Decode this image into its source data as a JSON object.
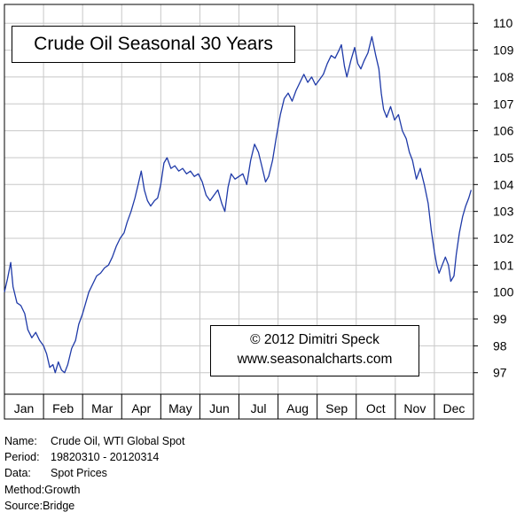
{
  "chart_data": {
    "type": "line",
    "title": "Crude Oil Seasonal 30 Years",
    "credit": [
      "© 2012  Dimitri Speck",
      "www.seasonalcharts.com"
    ],
    "x_ticks": [
      "Jan",
      "Feb",
      "Mar",
      "Apr",
      "May",
      "Jun",
      "Jul",
      "Aug",
      "Sep",
      "Oct",
      "Nov",
      "Dec"
    ],
    "y_ticks": [
      97,
      98,
      99,
      100,
      101,
      102,
      103,
      104,
      105,
      106,
      107,
      108,
      109,
      110
    ],
    "ylim": [
      96.2,
      110.7
    ],
    "xlim": [
      0,
      12
    ],
    "grid": true,
    "y_axis_side": "right",
    "line_color": "#1f3aa8",
    "series": [
      {
        "points": [
          [
            0.0,
            100.0
          ],
          [
            0.08,
            100.5
          ],
          [
            0.16,
            101.1
          ],
          [
            0.22,
            100.2
          ],
          [
            0.32,
            99.6
          ],
          [
            0.42,
            99.5
          ],
          [
            0.52,
            99.2
          ],
          [
            0.6,
            98.6
          ],
          [
            0.7,
            98.3
          ],
          [
            0.8,
            98.5
          ],
          [
            0.9,
            98.2
          ],
          [
            1.0,
            98.0
          ],
          [
            1.08,
            97.7
          ],
          [
            1.16,
            97.2
          ],
          [
            1.24,
            97.3
          ],
          [
            1.3,
            97.0
          ],
          [
            1.38,
            97.4
          ],
          [
            1.46,
            97.1
          ],
          [
            1.54,
            97.0
          ],
          [
            1.62,
            97.3
          ],
          [
            1.72,
            97.9
          ],
          [
            1.82,
            98.2
          ],
          [
            1.9,
            98.8
          ],
          [
            2.0,
            99.2
          ],
          [
            2.08,
            99.6
          ],
          [
            2.16,
            100.0
          ],
          [
            2.26,
            100.3
          ],
          [
            2.36,
            100.6
          ],
          [
            2.46,
            100.7
          ],
          [
            2.56,
            100.9
          ],
          [
            2.66,
            101.0
          ],
          [
            2.76,
            101.3
          ],
          [
            2.86,
            101.7
          ],
          [
            2.96,
            102.0
          ],
          [
            3.06,
            102.2
          ],
          [
            3.14,
            102.6
          ],
          [
            3.24,
            103.0
          ],
          [
            3.34,
            103.5
          ],
          [
            3.42,
            104.0
          ],
          [
            3.5,
            104.5
          ],
          [
            3.58,
            103.8
          ],
          [
            3.66,
            103.4
          ],
          [
            3.74,
            103.2
          ],
          [
            3.84,
            103.4
          ],
          [
            3.92,
            103.5
          ],
          [
            4.0,
            104.0
          ],
          [
            4.08,
            104.8
          ],
          [
            4.16,
            105.0
          ],
          [
            4.26,
            104.6
          ],
          [
            4.36,
            104.7
          ],
          [
            4.46,
            104.5
          ],
          [
            4.56,
            104.6
          ],
          [
            4.66,
            104.4
          ],
          [
            4.76,
            104.5
          ],
          [
            4.86,
            104.3
          ],
          [
            4.96,
            104.4
          ],
          [
            5.06,
            104.1
          ],
          [
            5.16,
            103.6
          ],
          [
            5.26,
            103.4
          ],
          [
            5.36,
            103.6
          ],
          [
            5.46,
            103.8
          ],
          [
            5.56,
            103.3
          ],
          [
            5.64,
            103.0
          ],
          [
            5.72,
            103.9
          ],
          [
            5.8,
            104.4
          ],
          [
            5.9,
            104.2
          ],
          [
            6.0,
            104.3
          ],
          [
            6.1,
            104.4
          ],
          [
            6.2,
            104.0
          ],
          [
            6.3,
            104.9
          ],
          [
            6.4,
            105.5
          ],
          [
            6.5,
            105.2
          ],
          [
            6.6,
            104.6
          ],
          [
            6.68,
            104.1
          ],
          [
            6.76,
            104.3
          ],
          [
            6.86,
            104.9
          ],
          [
            6.96,
            105.8
          ],
          [
            7.06,
            106.6
          ],
          [
            7.16,
            107.2
          ],
          [
            7.26,
            107.4
          ],
          [
            7.36,
            107.1
          ],
          [
            7.46,
            107.5
          ],
          [
            7.56,
            107.8
          ],
          [
            7.66,
            108.1
          ],
          [
            7.76,
            107.8
          ],
          [
            7.86,
            108.0
          ],
          [
            7.96,
            107.7
          ],
          [
            8.06,
            107.9
          ],
          [
            8.16,
            108.1
          ],
          [
            8.26,
            108.5
          ],
          [
            8.36,
            108.8
          ],
          [
            8.46,
            108.7
          ],
          [
            8.56,
            109.0
          ],
          [
            8.62,
            109.2
          ],
          [
            8.7,
            108.4
          ],
          [
            8.76,
            108.0
          ],
          [
            8.86,
            108.6
          ],
          [
            8.96,
            109.1
          ],
          [
            9.04,
            108.5
          ],
          [
            9.12,
            108.3
          ],
          [
            9.2,
            108.6
          ],
          [
            9.3,
            108.9
          ],
          [
            9.4,
            109.5
          ],
          [
            9.5,
            108.8
          ],
          [
            9.58,
            108.3
          ],
          [
            9.64,
            107.4
          ],
          [
            9.7,
            106.8
          ],
          [
            9.78,
            106.5
          ],
          [
            9.88,
            106.9
          ],
          [
            9.98,
            106.4
          ],
          [
            10.08,
            106.6
          ],
          [
            10.18,
            106.0
          ],
          [
            10.28,
            105.7
          ],
          [
            10.36,
            105.2
          ],
          [
            10.44,
            104.9
          ],
          [
            10.54,
            104.2
          ],
          [
            10.64,
            104.6
          ],
          [
            10.74,
            104.0
          ],
          [
            10.84,
            103.3
          ],
          [
            10.92,
            102.3
          ],
          [
            11.0,
            101.5
          ],
          [
            11.06,
            101.0
          ],
          [
            11.12,
            100.7
          ],
          [
            11.2,
            101.0
          ],
          [
            11.28,
            101.3
          ],
          [
            11.36,
            101.0
          ],
          [
            11.42,
            100.4
          ],
          [
            11.5,
            100.6
          ],
          [
            11.56,
            101.4
          ],
          [
            11.64,
            102.2
          ],
          [
            11.72,
            102.8
          ],
          [
            11.8,
            103.2
          ],
          [
            11.88,
            103.5
          ],
          [
            11.94,
            103.8
          ]
        ]
      }
    ]
  },
  "info": [
    {
      "key": "Name:",
      "value": "Crude Oil, WTI Global Spot"
    },
    {
      "key": "Period:",
      "value": "19820310 - 20120314"
    },
    {
      "key": "Data:",
      "value": "Spot Prices"
    },
    {
      "key": "Method:",
      "value": "Growth"
    },
    {
      "key": "Source:",
      "value": "Bridge"
    }
  ]
}
